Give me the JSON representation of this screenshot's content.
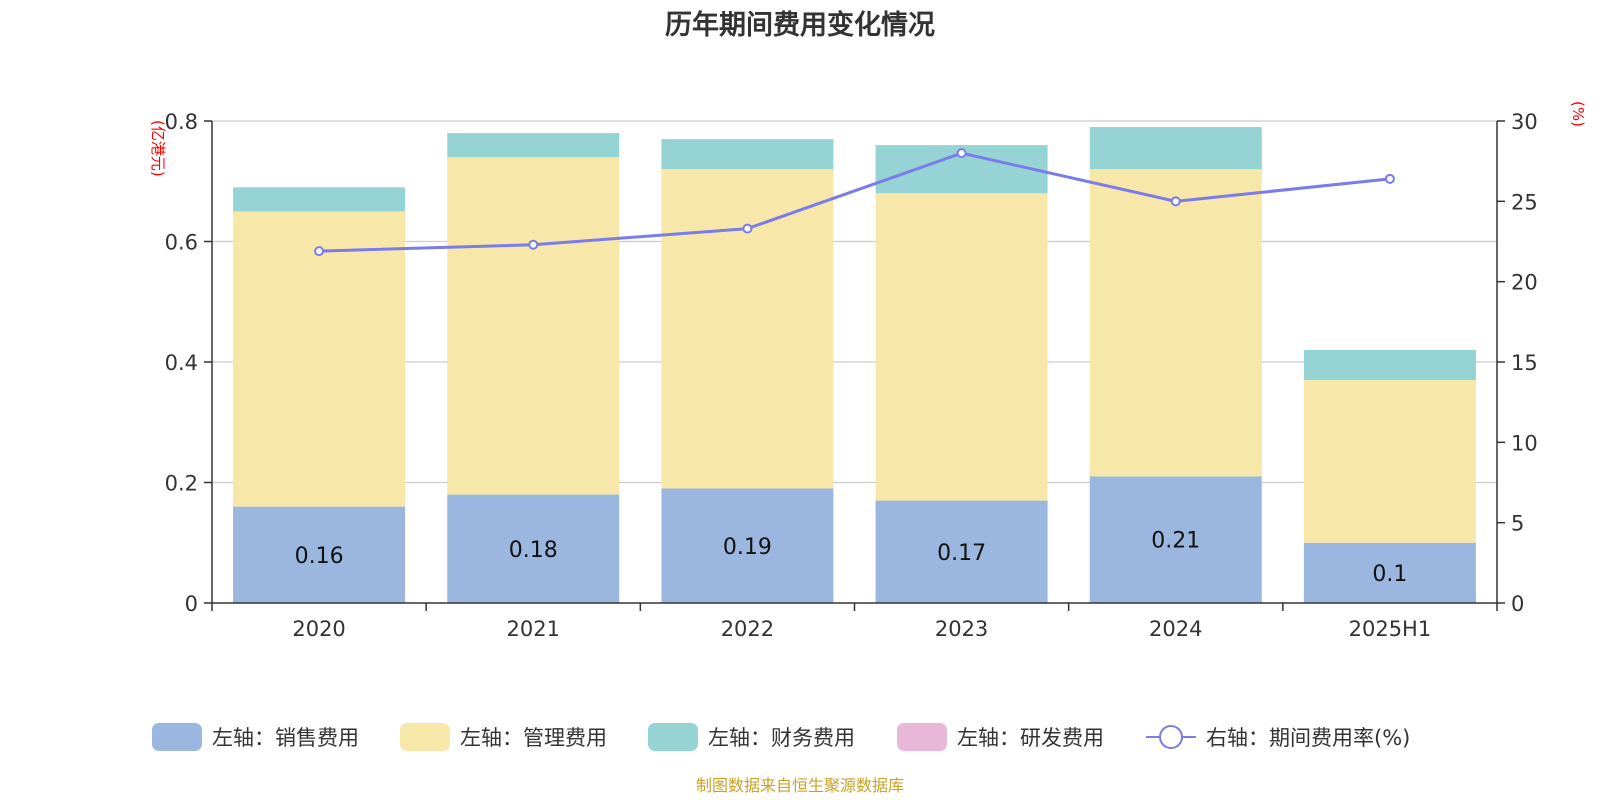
{
  "chart_data": {
    "type": "bar",
    "title": "历年期间费用变化情况",
    "categories": [
      "2020",
      "2021",
      "2022",
      "2023",
      "2024",
      "2025H1"
    ],
    "left_axis": {
      "unit": "(亿港元)",
      "ylim": [
        0,
        0.8
      ],
      "ticks": [
        "0",
        "0.2",
        "0.4",
        "0.6",
        "0.8"
      ],
      "tick_values": [
        0,
        0.2,
        0.4,
        0.6,
        0.8
      ]
    },
    "right_axis": {
      "unit": "(%)",
      "ylim": [
        0,
        30
      ],
      "ticks": [
        "0",
        "5",
        "10",
        "15",
        "20",
        "25",
        "30"
      ],
      "tick_values": [
        0,
        5,
        10,
        15,
        20,
        25,
        30
      ]
    },
    "grid": true,
    "legend_position": "bottom",
    "series": [
      {
        "name": "左轴：销售费用",
        "type": "bar",
        "axis": "left",
        "color": "#9bb7e0",
        "values": [
          0.16,
          0.18,
          0.19,
          0.17,
          0.21,
          0.1
        ],
        "labels": [
          "0.16",
          "0.18",
          "0.19",
          "0.17",
          "0.21",
          "0.1"
        ]
      },
      {
        "name": "左轴：管理费用",
        "type": "bar",
        "axis": "left",
        "color": "#f7e7a8",
        "values": [
          0.49,
          0.56,
          0.53,
          0.51,
          0.51,
          0.27
        ]
      },
      {
        "name": "左轴：财务费用",
        "type": "bar",
        "axis": "left",
        "color": "#96d3d4",
        "values": [
          0.04,
          0.04,
          0.05,
          0.08,
          0.07,
          0.05
        ]
      },
      {
        "name": "左轴：研发费用",
        "type": "bar",
        "axis": "left",
        "color": "#e8b8d9",
        "values": [
          0,
          0,
          0,
          0,
          0,
          0
        ]
      },
      {
        "name": "右轴：期间费用率(%)",
        "type": "line",
        "axis": "right",
        "color": "#7b7bea",
        "values": [
          21.9,
          22.3,
          23.3,
          28.0,
          25.0,
          26.4
        ]
      }
    ]
  },
  "source": "制图数据来自恒生聚源数据库"
}
